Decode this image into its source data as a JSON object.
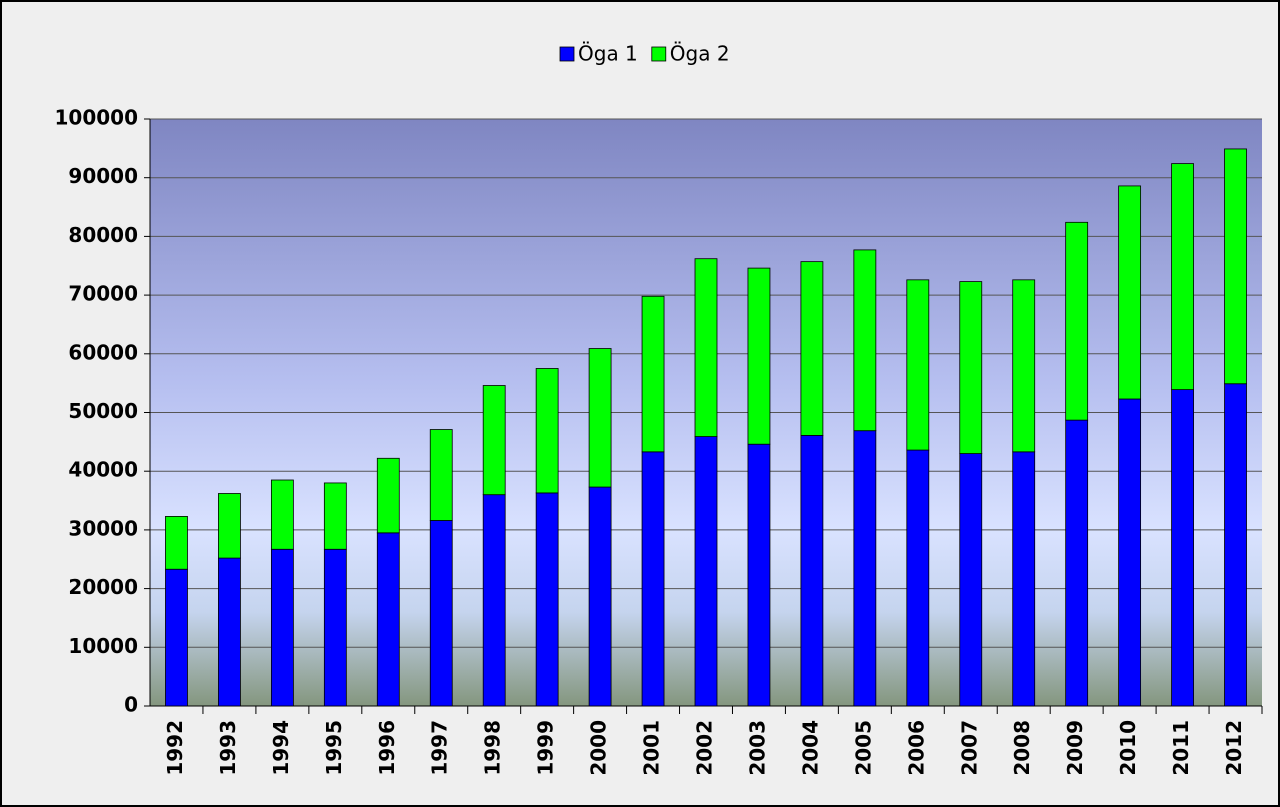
{
  "chart_data": {
    "type": "stacked_bar",
    "categories": [
      "1992",
      "1993",
      "1994",
      "1995",
      "1996",
      "1997",
      "1998",
      "1999",
      "2000",
      "2001",
      "2002",
      "2003",
      "2004",
      "2005",
      "2006",
      "2007",
      "2008",
      "2009",
      "2010",
      "2011",
      "2012"
    ],
    "series": [
      {
        "name": "Öga 1",
        "color": "#0000ff",
        "values": [
          23300,
          25200,
          26700,
          26700,
          29500,
          31600,
          36000,
          36300,
          37300,
          43300,
          45900,
          44600,
          46100,
          46900,
          43600,
          43000,
          43300,
          48700,
          52300,
          53900,
          54900
        ]
      },
      {
        "name": "Öga 2",
        "color": "#00ff00",
        "values": [
          9000,
          11000,
          11800,
          11300,
          12700,
          15500,
          18600,
          21200,
          23600,
          26500,
          30300,
          30000,
          29600,
          30800,
          29000,
          29300,
          29300,
          33700,
          36300,
          38500,
          40000
        ]
      }
    ],
    "ylim": [
      0,
      100000
    ],
    "yticks": [
      0,
      10000,
      20000,
      30000,
      40000,
      50000,
      60000,
      70000,
      80000,
      90000,
      100000
    ],
    "grid": true,
    "legend": "top"
  }
}
